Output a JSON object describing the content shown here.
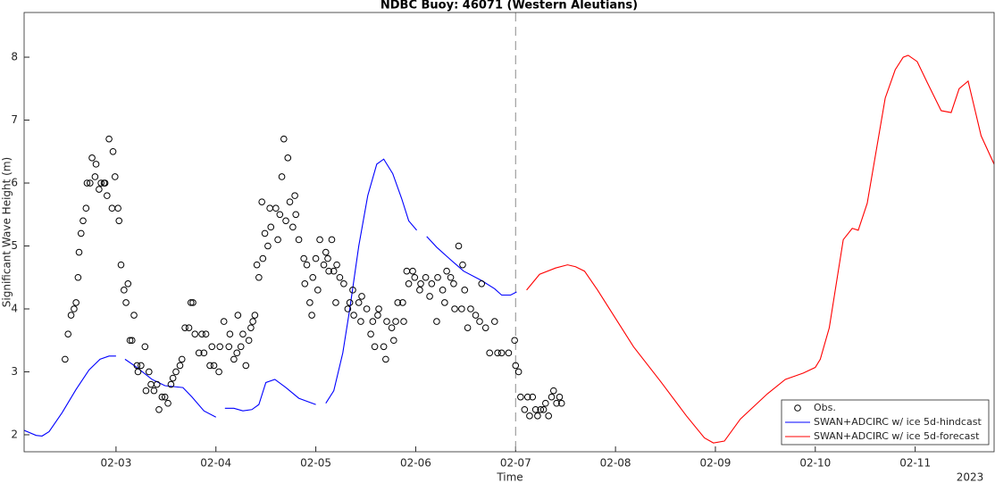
{
  "chart_data": {
    "type": "line",
    "title": "NDBC Buoy: 46071 (Western Aleutians)",
    "x_label": "Time",
    "y_label": "Significant Wave Height (m)",
    "x_year_label": "2023",
    "xlim": [
      2.08,
      11.79
    ],
    "ylim": [
      1.73,
      8.71
    ],
    "xticks": [
      {
        "value": 3,
        "label": "02-03"
      },
      {
        "value": 4,
        "label": "02-04"
      },
      {
        "value": 5,
        "label": "02-05"
      },
      {
        "value": 6,
        "label": "02-06"
      },
      {
        "value": 7,
        "label": "02-07"
      },
      {
        "value": 8,
        "label": "02-08"
      },
      {
        "value": 9,
        "label": "02-09"
      },
      {
        "value": 10,
        "label": "02-10"
      },
      {
        "value": 11,
        "label": "02-11"
      }
    ],
    "yticks": [
      2,
      3,
      4,
      5,
      6,
      7,
      8
    ],
    "vline": 7,
    "legend": "lower right",
    "series": [
      {
        "name": "Obs.",
        "color": "#000000",
        "mode": "markers",
        "x": [
          2.49,
          2.52,
          2.55,
          2.58,
          2.6,
          2.62,
          2.63,
          2.65,
          2.67,
          2.7,
          2.71,
          2.74,
          2.76,
          2.79,
          2.8,
          2.83,
          2.85,
          2.88,
          2.89,
          2.91,
          2.93,
          2.96,
          2.97,
          2.99,
          3.02,
          3.03,
          3.05,
          3.08,
          3.1,
          3.12,
          3.14,
          3.16,
          3.18,
          3.21,
          3.22,
          3.25,
          3.29,
          3.3,
          3.33,
          3.35,
          3.38,
          3.41,
          3.43,
          3.46,
          3.49,
          3.52,
          3.55,
          3.57,
          3.6,
          3.64,
          3.66,
          3.69,
          3.73,
          3.75,
          3.77,
          3.79,
          3.83,
          3.86,
          3.88,
          3.9,
          3.94,
          3.96,
          3.98,
          4.03,
          4.04,
          4.08,
          4.13,
          4.14,
          4.18,
          4.21,
          4.22,
          4.25,
          4.27,
          4.3,
          4.33,
          4.35,
          4.37,
          4.39,
          4.41,
          4.43,
          4.46,
          4.47,
          4.49,
          4.52,
          4.54,
          4.55,
          4.6,
          4.62,
          4.64,
          4.66,
          4.68,
          4.7,
          4.72,
          4.74,
          4.77,
          4.79,
          4.8,
          4.83,
          4.88,
          4.89,
          4.91,
          4.94,
          4.96,
          4.97,
          5.0,
          5.02,
          5.04,
          5.08,
          5.1,
          5.12,
          5.13,
          5.16,
          5.18,
          5.2,
          5.21,
          5.24,
          5.28,
          5.32,
          5.34,
          5.37,
          5.38,
          5.43,
          5.45,
          5.46,
          5.51,
          5.55,
          5.57,
          5.59,
          5.62,
          5.63,
          5.68,
          5.7,
          5.71,
          5.76,
          5.78,
          5.8,
          5.82,
          5.87,
          5.88,
          5.91,
          5.93,
          5.97,
          5.99,
          6.04,
          6.05,
          6.1,
          6.14,
          6.16,
          6.21,
          6.22,
          6.27,
          6.29,
          6.31,
          6.35,
          6.38,
          6.39,
          6.43,
          6.46,
          6.47,
          6.49,
          6.52,
          6.55,
          6.6,
          6.64,
          6.66,
          6.7,
          6.74,
          6.79,
          6.82,
          6.86,
          6.93,
          6.99,
          7.0,
          7.03,
          7.05,
          7.09,
          7.12,
          7.14,
          7.17,
          7.2,
          7.22,
          7.25,
          7.28,
          7.3,
          7.33,
          7.36,
          7.38,
          7.41,
          7.44,
          7.46
        ],
        "values": [
          3.2,
          3.6,
          3.9,
          4.0,
          4.1,
          4.5,
          4.9,
          5.2,
          5.4,
          5.6,
          6.0,
          6.0,
          6.4,
          6.1,
          6.3,
          5.9,
          6.0,
          6.0,
          6.0,
          5.8,
          6.7,
          5.6,
          6.5,
          6.1,
          5.6,
          5.4,
          4.7,
          4.3,
          4.1,
          4.4,
          3.5,
          3.5,
          3.9,
          3.1,
          3.0,
          3.1,
          3.4,
          2.7,
          3.0,
          2.8,
          2.7,
          2.8,
          2.4,
          2.6,
          2.6,
          2.5,
          2.8,
          2.9,
          3.0,
          3.1,
          3.2,
          3.7,
          3.7,
          4.1,
          4.1,
          3.6,
          3.3,
          3.6,
          3.3,
          3.6,
          3.1,
          3.4,
          3.1,
          3.0,
          3.4,
          3.8,
          3.4,
          3.6,
          3.2,
          3.3,
          3.9,
          3.4,
          3.6,
          3.1,
          3.5,
          3.7,
          3.8,
          3.9,
          4.7,
          4.5,
          5.7,
          4.8,
          5.2,
          5.0,
          5.6,
          5.3,
          5.6,
          5.1,
          5.5,
          6.1,
          6.7,
          5.4,
          6.4,
          5.7,
          5.3,
          5.8,
          5.5,
          5.1,
          4.8,
          4.4,
          4.7,
          4.1,
          3.9,
          4.5,
          4.8,
          4.3,
          5.1,
          4.7,
          4.9,
          4.8,
          4.6,
          5.1,
          4.6,
          4.1,
          4.7,
          4.5,
          4.4,
          4.0,
          4.1,
          4.3,
          3.9,
          4.1,
          3.8,
          4.2,
          4.0,
          3.6,
          3.8,
          3.4,
          3.9,
          4.0,
          3.4,
          3.2,
          3.8,
          3.7,
          3.5,
          3.8,
          4.1,
          4.1,
          3.8,
          4.6,
          4.4,
          4.6,
          4.5,
          4.3,
          4.4,
          4.5,
          4.2,
          4.4,
          3.8,
          4.5,
          4.3,
          4.1,
          4.6,
          4.5,
          4.4,
          4.0,
          5.0,
          4.0,
          4.7,
          4.3,
          3.7,
          4.0,
          3.9,
          3.8,
          4.4,
          3.7,
          3.3,
          3.8,
          3.3,
          3.3,
          3.3,
          3.5,
          3.1,
          3.0,
          2.6,
          2.4,
          2.6,
          2.3,
          2.6,
          2.4,
          2.3,
          2.4,
          2.4,
          2.5,
          2.3,
          2.6,
          2.7,
          2.5,
          2.6,
          2.5
        ]
      },
      {
        "name": "SWAN+ADCIRC w/ ice 5d-hindcast",
        "color": "#0000ff",
        "mode": "lines",
        "x": [
          2.08,
          2.2,
          2.26,
          2.33,
          2.46,
          2.6,
          2.73,
          2.84,
          2.93,
          3.0,
          3.05,
          3.09,
          3.2,
          3.36,
          3.49,
          3.67,
          3.76,
          3.88,
          4.0,
          4.05,
          4.09,
          4.18,
          4.27,
          4.36,
          4.43,
          4.5,
          4.59,
          4.7,
          4.83,
          5.0,
          5.05,
          5.1,
          5.18,
          5.27,
          5.34,
          5.43,
          5.52,
          5.61,
          5.68,
          5.77,
          5.86,
          5.93,
          6.01,
          6.06,
          6.11,
          6.21,
          6.35,
          6.48,
          6.66,
          6.79,
          6.86,
          6.95,
          7.01
        ],
        "values": [
          2.07,
          1.99,
          1.98,
          2.05,
          2.35,
          2.72,
          3.03,
          3.2,
          3.25,
          3.25,
          null,
          3.2,
          3.08,
          2.88,
          2.78,
          2.75,
          2.6,
          2.38,
          2.28,
          null,
          2.42,
          2.42,
          2.38,
          2.4,
          2.48,
          2.83,
          2.88,
          2.75,
          2.58,
          2.48,
          null,
          2.5,
          2.7,
          3.3,
          4.0,
          5.0,
          5.8,
          6.3,
          6.38,
          6.15,
          5.75,
          5.4,
          5.25,
          null,
          5.15,
          4.98,
          4.78,
          4.6,
          4.45,
          4.32,
          4.22,
          4.22,
          4.27
        ]
      },
      {
        "name": "SWAN+ADCIRC w/ ice 5d-forecast",
        "color": "#ff0000",
        "mode": "lines",
        "x": [
          7.11,
          7.24,
          7.4,
          7.52,
          7.6,
          7.69,
          7.82,
          8.0,
          8.18,
          8.45,
          8.71,
          8.89,
          8.98,
          9.09,
          9.25,
          9.52,
          9.7,
          9.88,
          10.0,
          10.05,
          10.14,
          10.28,
          10.37,
          10.43,
          10.52,
          10.7,
          10.8,
          10.88,
          10.93,
          11.02,
          11.12,
          11.26,
          11.36,
          11.44,
          11.53,
          11.66,
          11.79
        ],
        "values": [
          4.3,
          4.55,
          4.65,
          4.7,
          4.67,
          4.6,
          4.3,
          3.85,
          3.4,
          2.85,
          2.3,
          1.95,
          1.87,
          1.9,
          2.25,
          2.65,
          2.88,
          2.98,
          3.07,
          3.2,
          3.7,
          5.1,
          5.28,
          5.25,
          5.68,
          7.35,
          7.8,
          8.0,
          8.03,
          7.93,
          7.6,
          7.15,
          7.12,
          7.5,
          7.62,
          6.75,
          6.3
        ]
      }
    ]
  }
}
